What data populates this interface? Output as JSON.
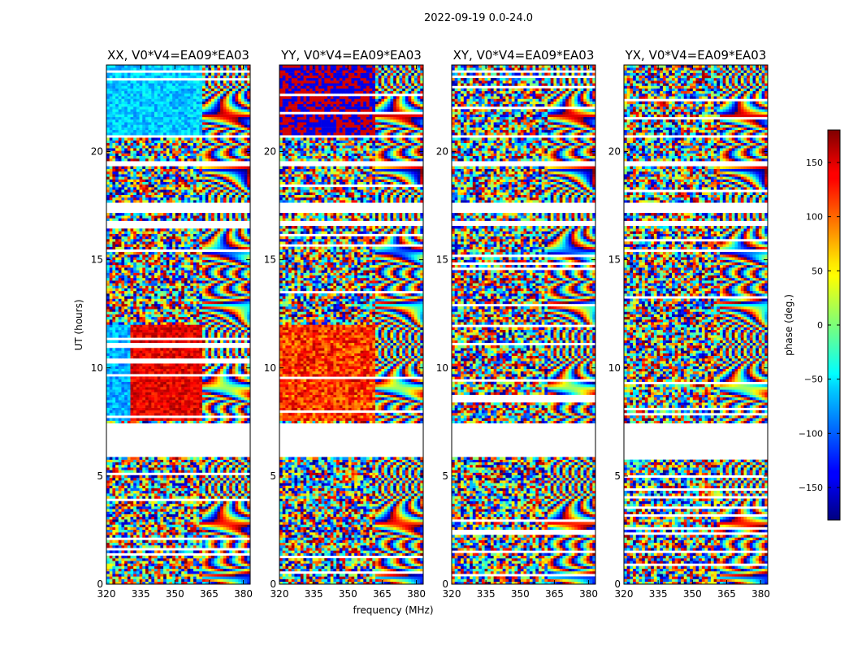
{
  "chart_data": {
    "type": "heatmap",
    "suptitle": "2022-09-19 0.0-24.0",
    "xlabel": "frequency (MHz)",
    "ylabel": "UT (hours)",
    "xlim": [
      320,
      383
    ],
    "ylim": [
      0,
      24
    ],
    "xticks": [
      320,
      335,
      350,
      365,
      380
    ],
    "yticks": [
      0,
      5,
      10,
      15,
      20
    ],
    "colorbar": {
      "label": "phase (deg.)",
      "range": [
        -180,
        180
      ],
      "ticks": [
        150,
        100,
        50,
        0,
        -50,
        -100,
        -150
      ],
      "tick_labels": [
        "150",
        "100",
        "50",
        "0",
        "−50",
        "−100",
        "−150"
      ],
      "colormap": "jet"
    },
    "panels": [
      {
        "title": "XX, V0*V4=EA09*EA03",
        "pol": "XX"
      },
      {
        "title": "YY, V0*V4=EA09*EA03",
        "pol": "YY"
      },
      {
        "title": "XY, V0*V4=EA09*EA03",
        "pol": "XY"
      },
      {
        "title": "YX, V0*V4=EA09*EA03",
        "pol": "YX"
      }
    ],
    "data_blocks_ut_hours": [
      [
        0,
        5.9
      ],
      [
        7.5,
        16.6
      ],
      [
        16.8,
        17.2
      ],
      [
        17.7,
        19.3
      ],
      [
        19.6,
        20.7
      ],
      [
        20.8,
        24
      ]
    ],
    "band_edge_mhz": 361
  }
}
